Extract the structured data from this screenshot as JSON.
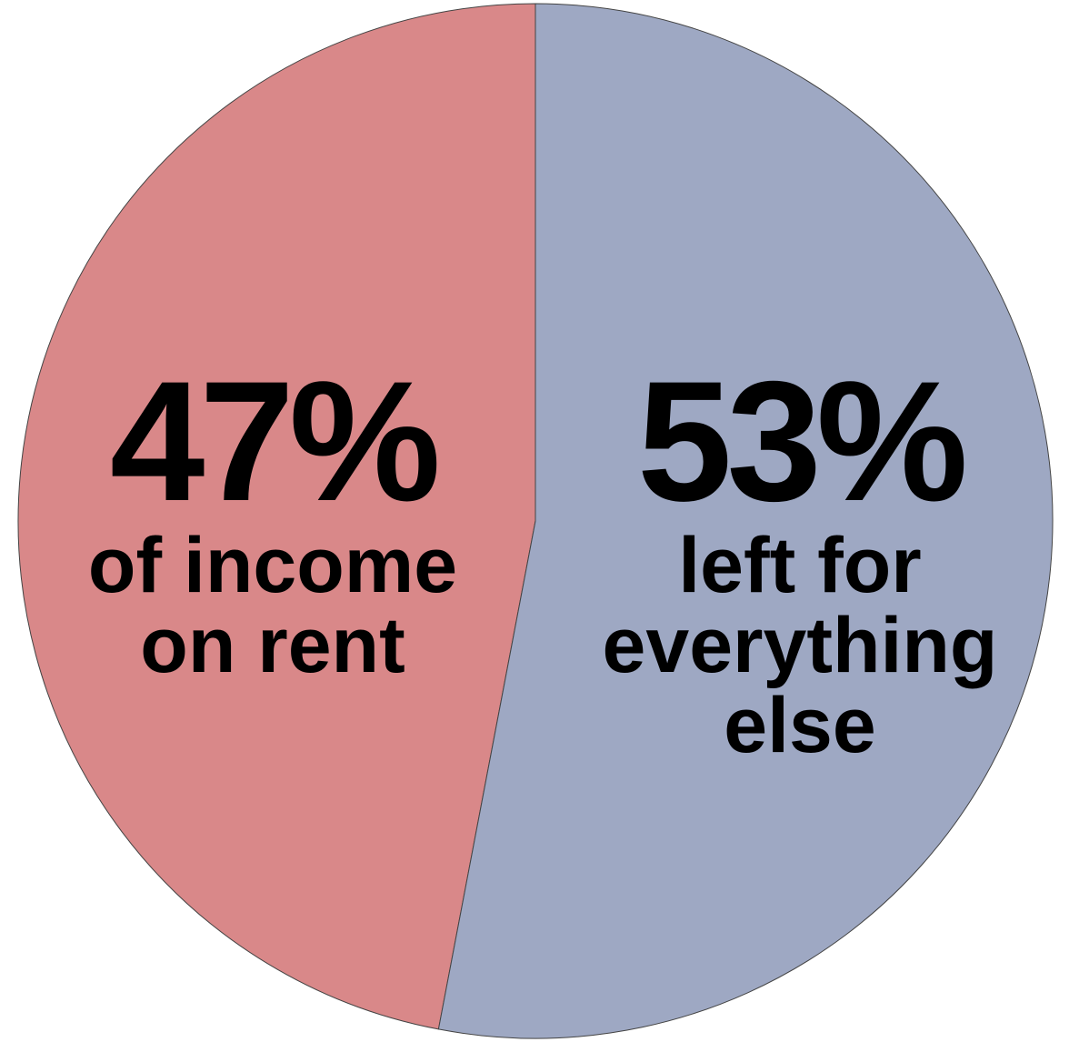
{
  "chart_data": {
    "type": "pie",
    "categories": [
      "of income on rent",
      "left for everything else"
    ],
    "values": [
      47,
      53
    ],
    "value_labels": [
      "47%",
      "53%"
    ],
    "colors": [
      "#d98889",
      "#9ea8c3"
    ]
  }
}
